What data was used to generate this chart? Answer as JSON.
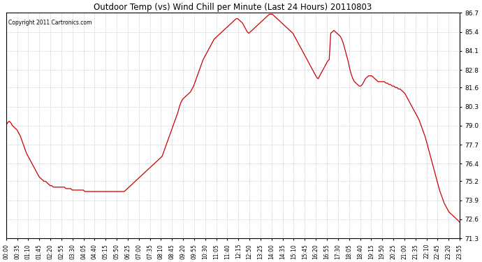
{
  "title": "Outdoor Temp (vs) Wind Chill per Minute (Last 24 Hours) 20110803",
  "copyright": "Copyright 2011 Cartronics.com",
  "line_color": "#cc0000",
  "background_color": "#ffffff",
  "grid_color": "#aaaaaa",
  "ylim": [
    71.3,
    86.7
  ],
  "yticks": [
    71.3,
    72.6,
    73.9,
    75.2,
    76.4,
    77.7,
    79.0,
    80.3,
    81.6,
    82.8,
    84.1,
    85.4,
    86.7
  ],
  "xtick_labels": [
    "00:00",
    "00:35",
    "01:10",
    "01:45",
    "02:20",
    "02:55",
    "03:30",
    "04:05",
    "04:40",
    "05:15",
    "05:50",
    "06:25",
    "07:00",
    "07:35",
    "08:10",
    "08:45",
    "09:20",
    "09:55",
    "10:30",
    "11:05",
    "11:40",
    "12:15",
    "12:50",
    "13:25",
    "14:00",
    "14:35",
    "15:10",
    "15:45",
    "16:20",
    "16:55",
    "17:30",
    "18:05",
    "18:40",
    "19:15",
    "19:50",
    "20:25",
    "21:00",
    "21:35",
    "22:10",
    "22:45",
    "23:20",
    "23:55"
  ],
  "curve_x": [
    0,
    5,
    10,
    15,
    20,
    25,
    30,
    35,
    40,
    45,
    50,
    55,
    60,
    65,
    70,
    75,
    80,
    85,
    90,
    95,
    100,
    105,
    110,
    115,
    120,
    125,
    130,
    135,
    140,
    145,
    150,
    155,
    160,
    165,
    170,
    175,
    180,
    185,
    190,
    195,
    200,
    205,
    210,
    215,
    220,
    225,
    230,
    235,
    240,
    245,
    250,
    255,
    260,
    265,
    270,
    275,
    280,
    285,
    290,
    295,
    300,
    305,
    310,
    315,
    320,
    325,
    330,
    335,
    340,
    345,
    350,
    355,
    360,
    365,
    370,
    375,
    380,
    385,
    390,
    395,
    400,
    405,
    410,
    415,
    420,
    425,
    430,
    435,
    440,
    445,
    450,
    455,
    460,
    465,
    470,
    475,
    480,
    485,
    490,
    495,
    500,
    505,
    510,
    515,
    520,
    525,
    530,
    535,
    540,
    545,
    550,
    555,
    560,
    565,
    570,
    575,
    580,
    585,
    590,
    595,
    600,
    605,
    610,
    615,
    620,
    625,
    630,
    635,
    640,
    645,
    650,
    655,
    660,
    665,
    670,
    675,
    680,
    685,
    690,
    695,
    700,
    705,
    710,
    715,
    720,
    725,
    730,
    735,
    740,
    745,
    750,
    755,
    760,
    765,
    770,
    775,
    780,
    785,
    790,
    795,
    800,
    805,
    810,
    815,
    820,
    825,
    830,
    835,
    840,
    845,
    850,
    855,
    860,
    865,
    870,
    875,
    880,
    885,
    890,
    895,
    900,
    905,
    910,
    915,
    920,
    925,
    930,
    935,
    940,
    945,
    950,
    955,
    960,
    965,
    970,
    975,
    980,
    985,
    990,
    995,
    1000,
    1005,
    1010,
    1015,
    1020,
    1025,
    1030,
    1035,
    1040,
    1045,
    1050,
    1055,
    1060,
    1065,
    1070,
    1075,
    1080,
    1085,
    1090,
    1095,
    1100,
    1105,
    1110,
    1115,
    1120,
    1125,
    1130,
    1135,
    1140,
    1145,
    1150,
    1155,
    1160,
    1165,
    1170,
    1175,
    1180,
    1185,
    1190,
    1195,
    1200,
    1205,
    1210,
    1215,
    1220,
    1225,
    1230,
    1235,
    1240,
    1245,
    1250,
    1255,
    1260,
    1265,
    1270,
    1275,
    1280,
    1285,
    1290,
    1295,
    1300,
    1305,
    1310,
    1315,
    1320,
    1325,
    1330,
    1335,
    1340,
    1345,
    1350,
    1355,
    1360,
    1365,
    1370,
    1375,
    1380,
    1385,
    1390,
    1395,
    1400,
    1405,
    1410,
    1415,
    1420,
    1425,
    1430,
    1435,
    1439
  ],
  "curve_y": [
    79.0,
    79.2,
    79.3,
    79.2,
    79.0,
    78.9,
    78.8,
    78.7,
    78.5,
    78.3,
    78.0,
    77.7,
    77.4,
    77.1,
    76.9,
    76.7,
    76.5,
    76.3,
    76.1,
    75.9,
    75.7,
    75.5,
    75.4,
    75.3,
    75.2,
    75.2,
    75.1,
    75.0,
    74.9,
    74.9,
    74.8,
    74.8,
    74.8,
    74.8,
    74.8,
    74.8,
    74.8,
    74.8,
    74.7,
    74.7,
    74.7,
    74.7,
    74.6,
    74.6,
    74.6,
    74.6,
    74.6,
    74.6,
    74.6,
    74.6,
    74.5,
    74.5,
    74.5,
    74.5,
    74.5,
    74.5,
    74.5,
    74.5,
    74.5,
    74.5,
    74.5,
    74.5,
    74.5,
    74.5,
    74.5,
    74.5,
    74.5,
    74.5,
    74.5,
    74.5,
    74.5,
    74.5,
    74.5,
    74.5,
    74.5,
    74.5,
    74.6,
    74.7,
    74.8,
    74.9,
    75.0,
    75.1,
    75.2,
    75.3,
    75.4,
    75.5,
    75.6,
    75.7,
    75.8,
    75.9,
    76.0,
    76.1,
    76.2,
    76.3,
    76.4,
    76.5,
    76.6,
    76.7,
    76.8,
    76.9,
    77.2,
    77.5,
    77.8,
    78.1,
    78.4,
    78.7,
    79.0,
    79.3,
    79.6,
    79.9,
    80.3,
    80.6,
    80.8,
    80.9,
    81.0,
    81.1,
    81.2,
    81.3,
    81.5,
    81.7,
    82.0,
    82.3,
    82.6,
    82.9,
    83.2,
    83.5,
    83.7,
    83.9,
    84.1,
    84.3,
    84.5,
    84.7,
    84.9,
    85.0,
    85.1,
    85.2,
    85.3,
    85.4,
    85.5,
    85.6,
    85.7,
    85.8,
    85.9,
    86.0,
    86.1,
    86.2,
    86.3,
    86.3,
    86.2,
    86.1,
    86.0,
    85.8,
    85.6,
    85.4,
    85.3,
    85.4,
    85.5,
    85.6,
    85.7,
    85.8,
    85.9,
    86.0,
    86.1,
    86.2,
    86.3,
    86.4,
    86.5,
    86.6,
    86.6,
    86.6,
    86.5,
    86.4,
    86.3,
    86.2,
    86.1,
    86.0,
    85.9,
    85.8,
    85.7,
    85.6,
    85.5,
    85.4,
    85.3,
    85.1,
    84.9,
    84.7,
    84.5,
    84.3,
    84.1,
    83.9,
    83.7,
    83.5,
    83.3,
    83.1,
    82.9,
    82.7,
    82.5,
    82.3,
    82.2,
    82.4,
    82.6,
    82.8,
    83.0,
    83.2,
    83.4,
    83.5,
    85.3,
    85.4,
    85.5,
    85.4,
    85.3,
    85.2,
    85.1,
    84.9,
    84.6,
    84.2,
    83.8,
    83.4,
    82.9,
    82.5,
    82.2,
    82.0,
    81.9,
    81.8,
    81.7,
    81.7,
    81.8,
    82.0,
    82.2,
    82.3,
    82.4,
    82.4,
    82.4,
    82.3,
    82.2,
    82.1,
    82.0,
    82.0,
    82.0,
    82.0,
    82.0,
    81.9,
    81.9,
    81.8,
    81.8,
    81.7,
    81.7,
    81.6,
    81.6,
    81.5,
    81.5,
    81.4,
    81.3,
    81.2,
    81.0,
    80.8,
    80.6,
    80.4,
    80.2,
    80.0,
    79.8,
    79.6,
    79.4,
    79.1,
    78.8,
    78.5,
    78.2,
    77.8,
    77.4,
    77.0,
    76.6,
    76.2,
    75.8,
    75.4,
    75.0,
    74.6,
    74.3,
    74.0,
    73.7,
    73.5,
    73.3,
    73.1,
    73.0,
    72.9,
    72.8,
    72.7,
    72.6,
    72.5,
    72.4
  ]
}
